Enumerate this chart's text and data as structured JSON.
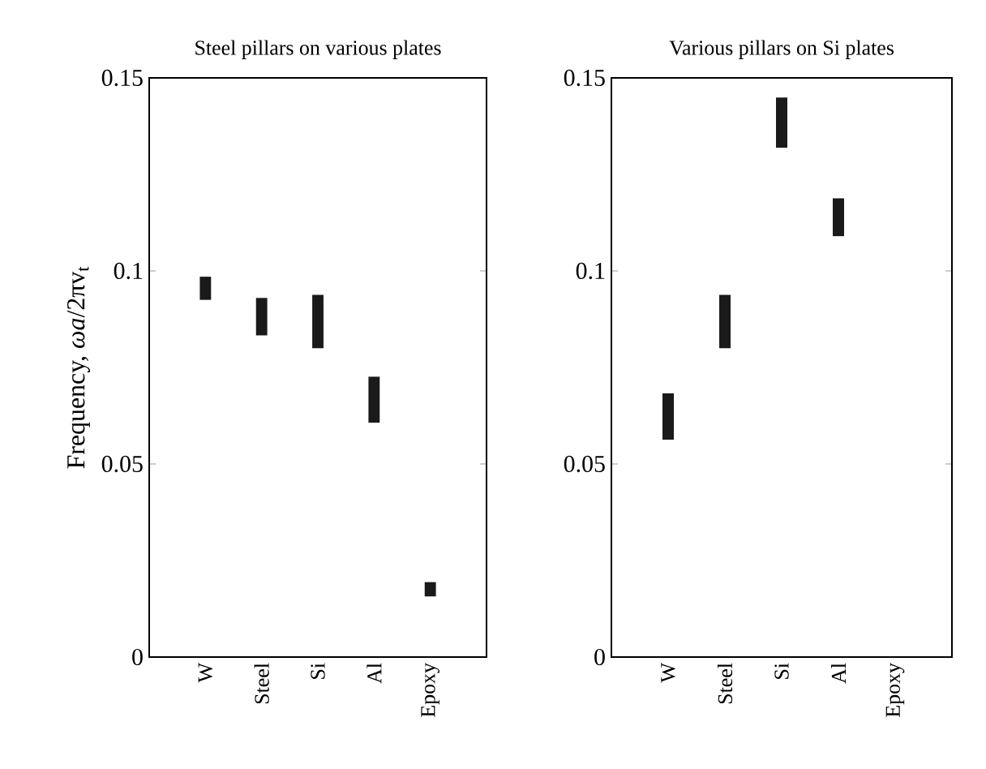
{
  "chart_data": [
    {
      "type": "bar",
      "title": "Steel pillars on various plates",
      "ylabel": "Frequency, *ωa*/2πv$_{t}$",
      "categories": [
        "W",
        "Steel",
        "Si",
        "Al",
        "Epoxy"
      ],
      "base": [
        0.0925,
        0.0833,
        0.08,
        0.0607,
        0.0157
      ],
      "values": [
        0.006,
        0.0097,
        0.0138,
        0.0119,
        0.0037
      ],
      "color": "#1a1a1a",
      "ylim": [
        0,
        0.15
      ],
      "yticks": [
        0,
        0.05,
        0.1,
        0.15
      ]
    },
    {
      "type": "bar",
      "title": "Various pillars on Si plates",
      "categories": [
        "W",
        "Steel",
        "Si",
        "Al",
        "Epoxy"
      ],
      "base": [
        0.0563,
        0.08,
        0.1319,
        0.109,
        null
      ],
      "values": [
        0.012,
        0.0138,
        0.013,
        0.0098,
        null
      ],
      "color": "#1a1a1a",
      "ylim": [
        0,
        0.15
      ],
      "yticks": [
        0,
        0.05,
        0.1,
        0.15
      ]
    }
  ]
}
